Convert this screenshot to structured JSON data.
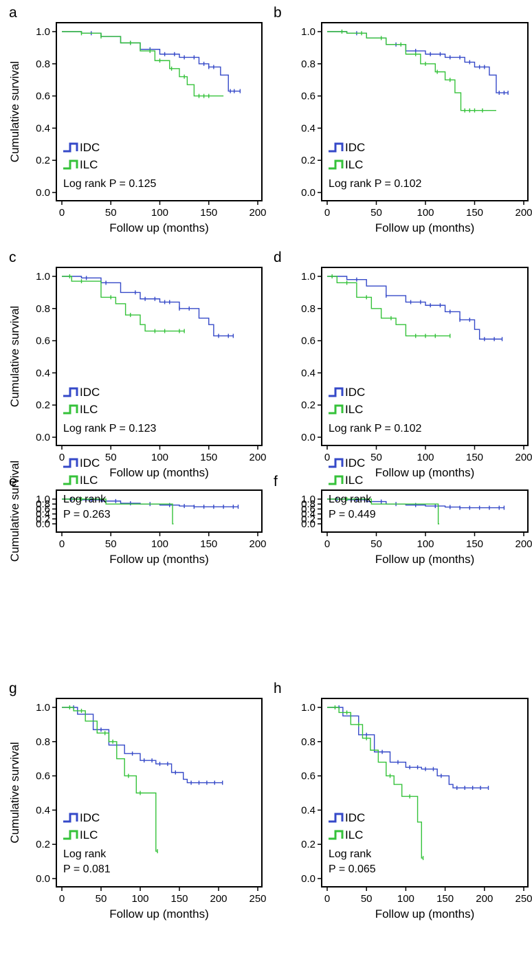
{
  "colors": {
    "IDC": "#3549c8",
    "ILC": "#35c23a",
    "axis": "#000000"
  },
  "y_axis_title": "Cumulative survival",
  "x_axis_title": "Follow up (months)",
  "legend": [
    "IDC",
    "ILC"
  ],
  "chart_data": [
    {
      "type": "line",
      "panel": "a",
      "xlabel": "Follow up (months)",
      "ylabel": "Cumulative survival",
      "xlim": [
        0,
        200
      ],
      "ylim": [
        0.0,
        1.0
      ],
      "xticks": [
        "0",
        "50",
        "100",
        "150",
        "200"
      ],
      "yticks": [
        "0.0",
        "0.2",
        "0.4",
        "0.6",
        "0.8",
        "1.0"
      ],
      "legend": [
        "IDC",
        "ILC"
      ],
      "legend_position": "bottom-left",
      "annotation": [
        "Log rank P = 0.125"
      ],
      "series": [
        {
          "name": "IDC",
          "step": true,
          "x": [
            0,
            20,
            40,
            60,
            80,
            100,
            120,
            140,
            150,
            162,
            170,
            182
          ],
          "y": [
            1.0,
            0.99,
            0.97,
            0.93,
            0.89,
            0.86,
            0.84,
            0.8,
            0.78,
            0.73,
            0.63,
            0.63
          ],
          "censor_x": [
            30,
            70,
            90,
            105,
            115,
            125,
            135,
            145,
            150,
            155,
            172,
            176,
            182
          ]
        },
        {
          "name": "ILC",
          "step": true,
          "x": [
            0,
            20,
            40,
            60,
            80,
            95,
            110,
            120,
            128,
            135,
            140,
            150,
            165
          ],
          "y": [
            1.0,
            0.99,
            0.97,
            0.93,
            0.88,
            0.82,
            0.77,
            0.72,
            0.67,
            0.6,
            0.6,
            0.6,
            0.6
          ],
          "censor_x": [
            20,
            40,
            70,
            90,
            100,
            112,
            125,
            140,
            145,
            150
          ]
        }
      ]
    },
    {
      "type": "line",
      "panel": "b",
      "xlabel": "Follow up (months)",
      "ylabel": "",
      "xlim": [
        0,
        200
      ],
      "ylim": [
        0.0,
        1.0
      ],
      "xticks": [
        "0",
        "50",
        "100",
        "150",
        "200"
      ],
      "yticks": [
        "0.0",
        "0.2",
        "0.4",
        "0.6",
        "0.8",
        "1.0"
      ],
      "legend": [
        "IDC",
        "ILC"
      ],
      "legend_position": "bottom-left",
      "annotation": [
        "Log rank P = 0.102"
      ],
      "series": [
        {
          "name": "IDC",
          "step": true,
          "x": [
            0,
            20,
            40,
            60,
            80,
            100,
            120,
            140,
            150,
            165,
            172,
            184
          ],
          "y": [
            1.0,
            0.99,
            0.96,
            0.92,
            0.88,
            0.86,
            0.84,
            0.81,
            0.78,
            0.73,
            0.62,
            0.62
          ],
          "censor_x": [
            30,
            70,
            90,
            105,
            115,
            125,
            135,
            145,
            155,
            160,
            175,
            180,
            184
          ]
        },
        {
          "name": "ILC",
          "step": true,
          "x": [
            0,
            20,
            40,
            60,
            80,
            95,
            110,
            120,
            130,
            136,
            140,
            172
          ],
          "y": [
            1.0,
            0.99,
            0.96,
            0.92,
            0.86,
            0.8,
            0.75,
            0.7,
            0.62,
            0.51,
            0.51,
            0.51
          ],
          "censor_x": [
            15,
            35,
            55,
            75,
            90,
            100,
            112,
            125,
            140,
            145,
            150,
            158
          ]
        }
      ]
    },
    {
      "type": "line",
      "panel": "c",
      "xlabel": "Follow up (months)",
      "ylabel": "Cumulative survival",
      "xlim": [
        0,
        200
      ],
      "ylim": [
        0.0,
        1.0
      ],
      "xticks": [
        "0",
        "50",
        "100",
        "150",
        "200"
      ],
      "yticks": [
        "0.0",
        "0.2",
        "0.4",
        "0.6",
        "0.8",
        "1.0"
      ],
      "legend": [
        "IDC",
        "ILC"
      ],
      "legend_position": "bottom-left",
      "annotation": [
        "Log rank P = 0.123"
      ],
      "series": [
        {
          "name": "IDC",
          "step": true,
          "x": [
            0,
            20,
            40,
            60,
            80,
            100,
            120,
            140,
            150,
            155,
            175
          ],
          "y": [
            1.0,
            0.99,
            0.96,
            0.9,
            0.86,
            0.84,
            0.8,
            0.74,
            0.7,
            0.63,
            0.63
          ],
          "censor_x": [
            25,
            45,
            75,
            85,
            95,
            105,
            110,
            120,
            130,
            160,
            170,
            175
          ]
        },
        {
          "name": "ILC",
          "step": true,
          "x": [
            0,
            10,
            30,
            40,
            55,
            65,
            80,
            85,
            125
          ],
          "y": [
            1.0,
            0.97,
            0.97,
            0.87,
            0.83,
            0.76,
            0.7,
            0.66,
            0.66
          ],
          "censor_x": [
            8,
            20,
            50,
            70,
            95,
            105,
            120,
            125
          ]
        }
      ]
    },
    {
      "type": "line",
      "panel": "d",
      "xlabel": "Follow up (months)",
      "ylabel": "",
      "xlim": [
        0,
        200
      ],
      "ylim": [
        0.0,
        1.0
      ],
      "xticks": [
        "0",
        "50",
        "100",
        "150",
        "200"
      ],
      "yticks": [
        "0.0",
        "0.2",
        "0.4",
        "0.6",
        "0.8",
        "1.0"
      ],
      "legend": [
        "IDC",
        "ILC"
      ],
      "legend_position": "bottom-left",
      "annotation": [
        "Log rank P = 0.102"
      ],
      "series": [
        {
          "name": "IDC",
          "step": true,
          "x": [
            0,
            20,
            40,
            60,
            80,
            100,
            120,
            135,
            150,
            155,
            178
          ],
          "y": [
            1.0,
            0.98,
            0.94,
            0.88,
            0.84,
            0.82,
            0.78,
            0.73,
            0.67,
            0.61,
            0.61
          ],
          "censor_x": [
            30,
            60,
            85,
            95,
            105,
            115,
            125,
            135,
            145,
            160,
            170,
            178
          ]
        },
        {
          "name": "ILC",
          "step": true,
          "x": [
            0,
            10,
            30,
            45,
            55,
            70,
            80,
            125
          ],
          "y": [
            1.0,
            0.96,
            0.87,
            0.8,
            0.74,
            0.7,
            0.63,
            0.63
          ],
          "censor_x": [
            5,
            20,
            40,
            65,
            90,
            100,
            110,
            125
          ]
        }
      ]
    },
    {
      "type": "line",
      "panel": "e",
      "xlabel": "Follow up (months)",
      "ylabel": "Cumulative survival",
      "xlim": [
        0,
        200
      ],
      "ylim": [
        0.0,
        1.0
      ],
      "xticks": [
        "0",
        "50",
        "100",
        "150",
        "200"
      ],
      "yticks": [
        "0.0",
        "0.2",
        "0.4",
        "0.6",
        "0.8",
        "1.0"
      ],
      "legend": [
        "IDC",
        "ILC"
      ],
      "legend_position": "bottom-left",
      "annotation": [
        "Log rank",
        "P = 0.263"
      ],
      "series": [
        {
          "name": "IDC",
          "step": true,
          "x": [
            0,
            20,
            40,
            60,
            80,
            100,
            120,
            135,
            180
          ],
          "y": [
            1.0,
            0.97,
            0.92,
            0.83,
            0.8,
            0.76,
            0.72,
            0.69,
            0.69
          ],
          "censor_x": [
            10,
            30,
            55,
            70,
            90,
            110,
            125,
            135,
            145,
            155,
            165,
            175,
            180
          ]
        },
        {
          "name": "ILC",
          "step": true,
          "x": [
            0,
            45,
            113,
            114
          ],
          "y": [
            1.0,
            0.8,
            0.0,
            0.0
          ],
          "censor_x": [
            20
          ]
        }
      ]
    },
    {
      "type": "line",
      "panel": "f",
      "xlabel": "Follow up (months)",
      "ylabel": "",
      "xlim": [
        0,
        200
      ],
      "ylim": [
        0.0,
        1.0
      ],
      "xticks": [
        "0",
        "50",
        "100",
        "150",
        "200"
      ],
      "yticks": [
        "0.0",
        "0.2",
        "0.4",
        "0.6",
        "0.8",
        "1.0"
      ],
      "legend": [
        "IDC",
        "ILC"
      ],
      "legend_position": "bottom-left",
      "annotation": [
        "Log rank",
        "P = 0.449"
      ],
      "series": [
        {
          "name": "IDC",
          "step": true,
          "x": [
            0,
            20,
            40,
            60,
            80,
            100,
            120,
            135,
            180
          ],
          "y": [
            1.0,
            0.97,
            0.9,
            0.8,
            0.76,
            0.72,
            0.68,
            0.65,
            0.65
          ],
          "censor_x": [
            10,
            30,
            55,
            70,
            90,
            110,
            125,
            135,
            145,
            155,
            165,
            175,
            180
          ]
        },
        {
          "name": "ILC",
          "step": true,
          "x": [
            0,
            45,
            113,
            114
          ],
          "y": [
            1.0,
            0.8,
            0.0,
            0.0
          ],
          "censor_x": [
            20
          ]
        }
      ]
    },
    {
      "type": "line",
      "panel": "g",
      "xlabel": "Follow up (months)",
      "ylabel": "Cumulative survival",
      "xlim": [
        0,
        250
      ],
      "ylim": [
        0.0,
        1.0
      ],
      "xticks": [
        "0",
        "50",
        "100",
        "150",
        "200",
        "250"
      ],
      "yticks": [
        "0.0",
        "0.2",
        "0.4",
        "0.6",
        "0.8",
        "1.0"
      ],
      "legend": [
        "IDC",
        "ILC"
      ],
      "legend_position": "bottom-left",
      "annotation": [
        "Log rank",
        "P = 0.081"
      ],
      "series": [
        {
          "name": "IDC",
          "step": true,
          "x": [
            0,
            20,
            40,
            60,
            80,
            100,
            120,
            140,
            155,
            160,
            205
          ],
          "y": [
            1.0,
            0.96,
            0.87,
            0.78,
            0.73,
            0.69,
            0.67,
            0.62,
            0.58,
            0.56,
            0.56
          ],
          "censor_x": [
            15,
            30,
            50,
            70,
            90,
            105,
            115,
            125,
            135,
            145,
            165,
            175,
            185,
            195,
            205
          ]
        },
        {
          "name": "ILC",
          "step": true,
          "x": [
            0,
            15,
            30,
            45,
            60,
            70,
            80,
            95,
            110,
            120,
            122
          ],
          "y": [
            1.0,
            0.98,
            0.92,
            0.85,
            0.8,
            0.7,
            0.6,
            0.5,
            0.5,
            0.16,
            0.16
          ],
          "censor_x": [
            10,
            25,
            55,
            65,
            85,
            100,
            122
          ]
        }
      ]
    },
    {
      "type": "line",
      "panel": "h",
      "xlabel": "Follow up (months)",
      "ylabel": "",
      "xlim": [
        0,
        250
      ],
      "ylim": [
        0.0,
        1.0
      ],
      "xticks": [
        "0",
        "50",
        "100",
        "150",
        "200",
        "250"
      ],
      "yticks": [
        "0.0",
        "0.2",
        "0.4",
        "0.6",
        "0.8",
        "1.0"
      ],
      "legend": [
        "IDC",
        "ILC"
      ],
      "legend_position": "bottom-left",
      "annotation": [
        "Log rank",
        "P = 0.065"
      ],
      "series": [
        {
          "name": "IDC",
          "step": true,
          "x": [
            0,
            20,
            40,
            60,
            80,
            100,
            120,
            140,
            155,
            160,
            205
          ],
          "y": [
            1.0,
            0.95,
            0.84,
            0.74,
            0.68,
            0.65,
            0.64,
            0.6,
            0.55,
            0.53,
            0.53
          ],
          "censor_x": [
            15,
            30,
            50,
            70,
            90,
            105,
            115,
            125,
            135,
            145,
            165,
            175,
            185,
            195,
            205
          ]
        },
        {
          "name": "ILC",
          "step": true,
          "x": [
            0,
            15,
            30,
            45,
            55,
            65,
            75,
            85,
            95,
            110,
            115,
            120,
            122
          ],
          "y": [
            1.0,
            0.97,
            0.9,
            0.82,
            0.75,
            0.68,
            0.6,
            0.55,
            0.48,
            0.48,
            0.33,
            0.12,
            0.12
          ],
          "censor_x": [
            10,
            25,
            40,
            50,
            80,
            105,
            122
          ]
        }
      ]
    }
  ]
}
